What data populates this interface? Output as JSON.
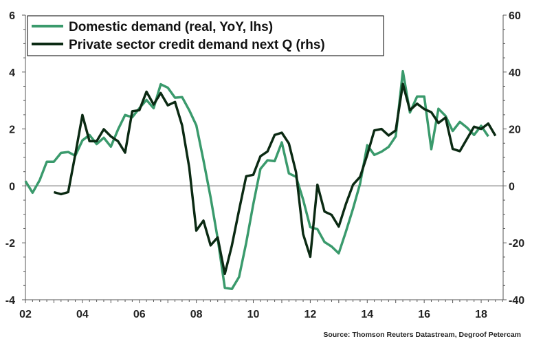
{
  "chart_data": {
    "type": "line",
    "title": "",
    "xlabel": "",
    "ylabel": "",
    "y2label": "",
    "xlim": [
      2002,
      2018.8
    ],
    "ylim": [
      -4,
      6
    ],
    "y2lim": [
      -40,
      60
    ],
    "x_tick_labels": [
      "02",
      "04",
      "06",
      "08",
      "10",
      "12",
      "14",
      "16",
      "18"
    ],
    "x_tick_values": [
      2002,
      2004,
      2006,
      2008,
      2010,
      2012,
      2014,
      2016,
      2018
    ],
    "y_ticks": [
      -4,
      -2,
      0,
      2,
      4,
      6
    ],
    "y2_ticks": [
      -40,
      -20,
      0,
      20,
      40,
      60
    ],
    "grid": false,
    "legend_position": "top-left",
    "series": [
      {
        "name": "Domestic demand (real, YoY, lhs)",
        "axis": "left",
        "color": "#3a9a6c",
        "x_start": 2002.0,
        "x_step": 0.25,
        "values": [
          0.17,
          -0.24,
          0.2,
          0.85,
          0.85,
          1.16,
          1.19,
          1.06,
          1.6,
          1.79,
          1.47,
          1.69,
          1.38,
          1.98,
          2.49,
          2.41,
          2.73,
          3.02,
          2.73,
          3.57,
          3.45,
          3.1,
          3.12,
          2.66,
          2.13,
          0.9,
          -0.4,
          -1.85,
          -3.58,
          -3.62,
          -3.2,
          -2.0,
          -0.64,
          0.6,
          0.9,
          0.87,
          1.53,
          0.44,
          0.32,
          -0.48,
          -1.45,
          -1.52,
          -1.97,
          -2.13,
          -2.37,
          -1.61,
          -0.8,
          0.08,
          1.43,
          1.09,
          1.2,
          1.37,
          1.74,
          4.03,
          2.58,
          3.14,
          3.14,
          1.29,
          2.71,
          2.46,
          1.93,
          2.25,
          2.05,
          1.79,
          2.11,
          1.74
        ]
      },
      {
        "name": "Private sector credit demand next Q (rhs)",
        "axis": "right",
        "color": "#0b2a13",
        "x_start": 2003.0,
        "x_step": 0.25,
        "values": [
          -2.2,
          -2.9,
          -2.2,
          11,
          24.9,
          15.7,
          15.7,
          19.9,
          17.4,
          15.7,
          11.7,
          26.2,
          26.6,
          33.1,
          28.6,
          32.6,
          28.3,
          29.5,
          21.3,
          6.5,
          -15.7,
          -12.2,
          -20.9,
          -18.1,
          -30.9,
          -20.9,
          -8.5,
          3.4,
          3.9,
          10.4,
          12.1,
          17.9,
          18.7,
          14.9,
          4.8,
          -16.9,
          -24.9,
          0.4,
          -9,
          -10.2,
          -14.3,
          -6.4,
          0.4,
          3.2,
          10.9,
          19.5,
          20,
          17.7,
          19.5,
          35.8,
          26.6,
          28.9,
          27,
          25.9,
          22.1,
          24,
          13,
          12.2,
          16.5,
          20.8,
          20,
          21.9,
          17.6
        ]
      }
    ],
    "source": "Source: Thomson Reuters Datastream, Degroof Petercam"
  }
}
